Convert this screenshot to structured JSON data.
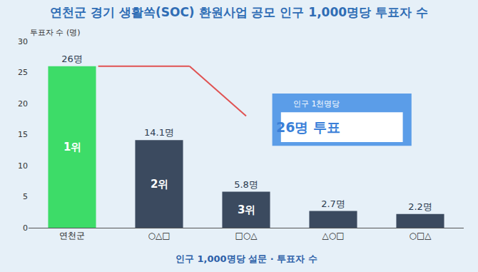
{
  "chart_data": {
    "type": "bar",
    "title": "연천군 경기 생활쏙(SOC) 환원사업 공모 인구 1,000명당 투표자 수",
    "y_label": "투표자 수 (명)",
    "x_label": "인구 1,000명당 설문 · 투표자 수",
    "categories": [
      "연천군",
      "○△□",
      "□○△",
      "△○□",
      "○□△"
    ],
    "values": [
      26,
      14.1,
      5.8,
      2.7,
      2.2
    ],
    "value_labels": [
      "26명",
      "14.1명",
      "5.8명",
      "2.7명",
      "2.2명"
    ],
    "colors": [
      "#3ddc68",
      "#3b4a5f",
      "#3b4a5f",
      "#3b4a5f",
      "#3b4a5f"
    ],
    "ylim": [
      0,
      30
    ],
    "yticks": [
      0,
      5,
      10,
      15,
      20,
      25,
      30
    ],
    "grid": false,
    "data_labels": true,
    "rank_labels": [
      {
        "category": "연천군",
        "text": "1위"
      },
      {
        "category": "○△□",
        "text": "2위"
      },
      {
        "category": "□○△",
        "text": "3위"
      }
    ],
    "callout": {
      "caption": "인구 1천명당",
      "text": "26명 투표"
    }
  }
}
